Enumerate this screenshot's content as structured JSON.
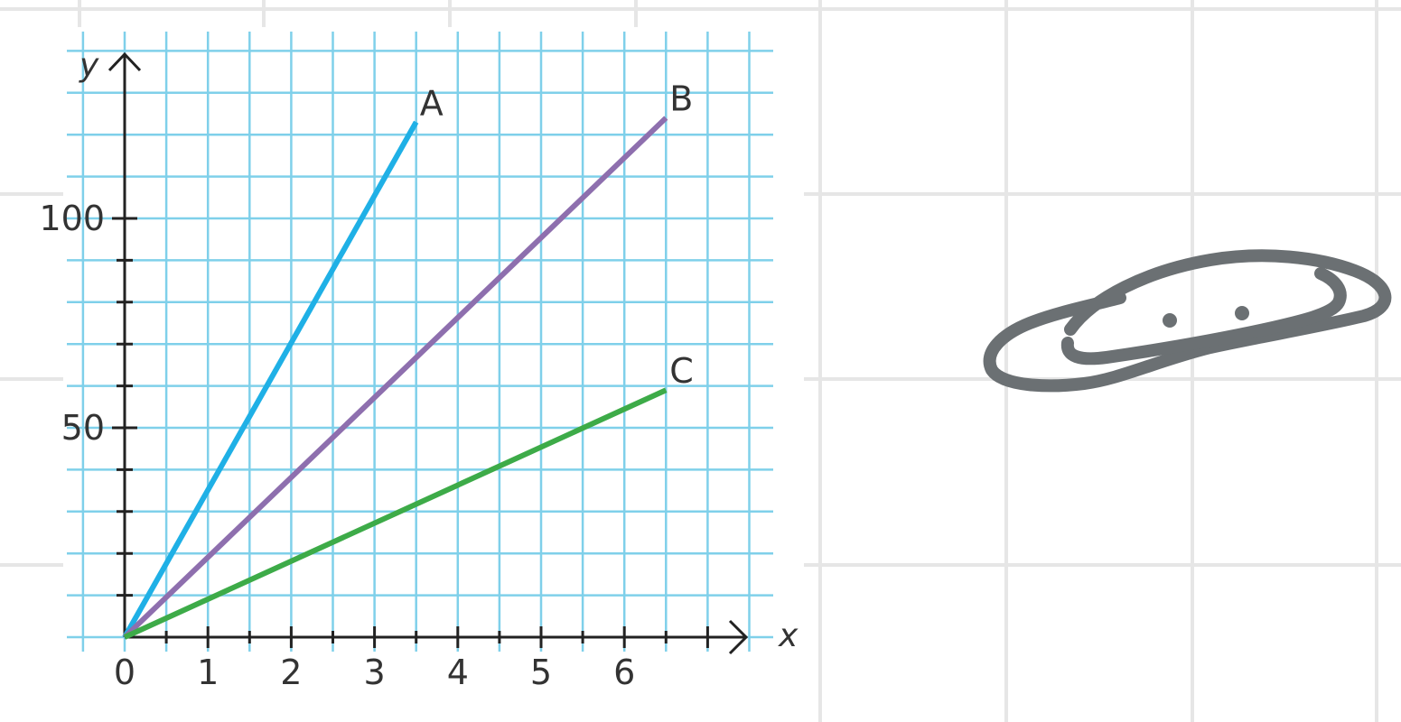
{
  "canvas": {
    "background": "#ffffff",
    "grid_color": "#e6e6e6"
  },
  "chart_data": {
    "type": "line",
    "title": "",
    "xlabel": "x",
    "ylabel": "y",
    "xlim": [
      0,
      7.5
    ],
    "ylim": [
      0,
      130
    ],
    "grid": true,
    "grid_color": "#7fd0ea",
    "x_ticks": [
      {
        "value": 0,
        "label": "0"
      },
      {
        "value": 1,
        "label": "1"
      },
      {
        "value": 2,
        "label": "2"
      },
      {
        "value": 3,
        "label": "3"
      },
      {
        "value": 4,
        "label": "4"
      },
      {
        "value": 5,
        "label": "5"
      },
      {
        "value": 6,
        "label": "6"
      }
    ],
    "y_ticks": [
      {
        "value": 50,
        "label": "50"
      },
      {
        "value": 100,
        "label": "100"
      }
    ],
    "series": [
      {
        "name": "A",
        "color": "#1fb0e6",
        "x": [
          0,
          3.5
        ],
        "y": [
          0,
          123
        ]
      },
      {
        "name": "B",
        "color": "#8e6fae",
        "x": [
          0,
          6.5
        ],
        "y": [
          0,
          124
        ]
      },
      {
        "name": "C",
        "color": "#3dab48",
        "x": [
          0,
          6.5
        ],
        "y": [
          0,
          59
        ]
      }
    ]
  },
  "annotation": {
    "name": "handwritten-scribble",
    "color": "#6b7073"
  }
}
